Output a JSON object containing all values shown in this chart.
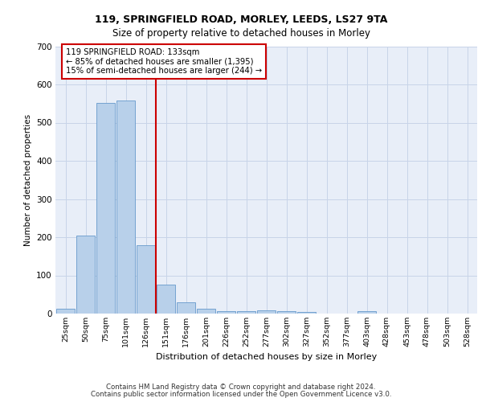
{
  "title1": "119, SPRINGFIELD ROAD, MORLEY, LEEDS, LS27 9TA",
  "title2": "Size of property relative to detached houses in Morley",
  "xlabel": "Distribution of detached houses by size in Morley",
  "ylabel": "Number of detached properties",
  "bar_labels": [
    "25sqm",
    "50sqm",
    "75sqm",
    "101sqm",
    "126sqm",
    "151sqm",
    "176sqm",
    "201sqm",
    "226sqm",
    "252sqm",
    "277sqm",
    "302sqm",
    "327sqm",
    "352sqm",
    "377sqm",
    "403sqm",
    "428sqm",
    "453sqm",
    "478sqm",
    "503sqm",
    "528sqm"
  ],
  "bar_values": [
    12,
    205,
    552,
    558,
    180,
    76,
    29,
    13,
    6,
    6,
    8,
    6,
    5,
    0,
    0,
    7,
    0,
    0,
    0,
    0,
    0
  ],
  "bar_color": "#b8d0ea",
  "bar_edge_color": "#6699cc",
  "grid_color": "#c8d4e8",
  "bg_color": "#e8eef8",
  "vline_color": "#cc0000",
  "annotation_text": "119 SPRINGFIELD ROAD: 133sqm\n← 85% of detached houses are smaller (1,395)\n15% of semi-detached houses are larger (244) →",
  "annotation_box_color": "#ffffff",
  "annotation_edge_color": "#cc0000",
  "footer1": "Contains HM Land Registry data © Crown copyright and database right 2024.",
  "footer2": "Contains public sector information licensed under the Open Government Licence v3.0.",
  "ylim": [
    0,
    700
  ],
  "yticks": [
    0,
    100,
    200,
    300,
    400,
    500,
    600,
    700
  ]
}
